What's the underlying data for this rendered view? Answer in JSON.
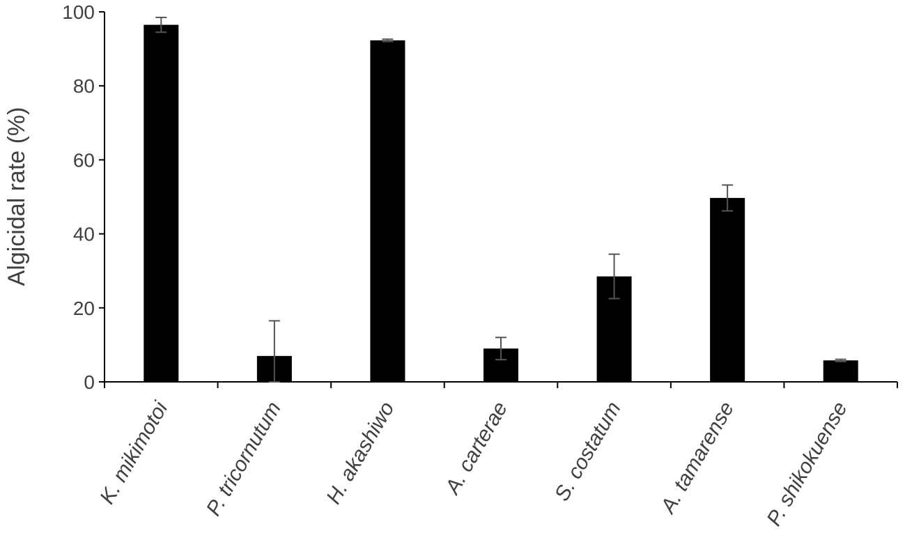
{
  "chart_data": {
    "type": "bar",
    "categories": [
      "K. mikimotoi",
      "P. tricornutum",
      "H. akashiwo",
      "A. carterae",
      "S. costatum",
      "A. tamarense",
      "P. shikokuense"
    ],
    "values": [
      96.5,
      7,
      92.3,
      9,
      28.5,
      49.7,
      5.8
    ],
    "errors": [
      2,
      9.5,
      0.3,
      3,
      6,
      3.5,
      0.3
    ],
    "title": "",
    "xlabel": "",
    "ylabel": "Algicidal rate (%)",
    "ylim": [
      0,
      100
    ],
    "yticks": [
      0,
      20,
      40,
      60,
      80,
      100
    ],
    "grid": false,
    "legend": "none",
    "colors": {
      "bar": "#000000",
      "axis": "#000000",
      "error_bar": "#555555",
      "text": "#404040"
    }
  }
}
